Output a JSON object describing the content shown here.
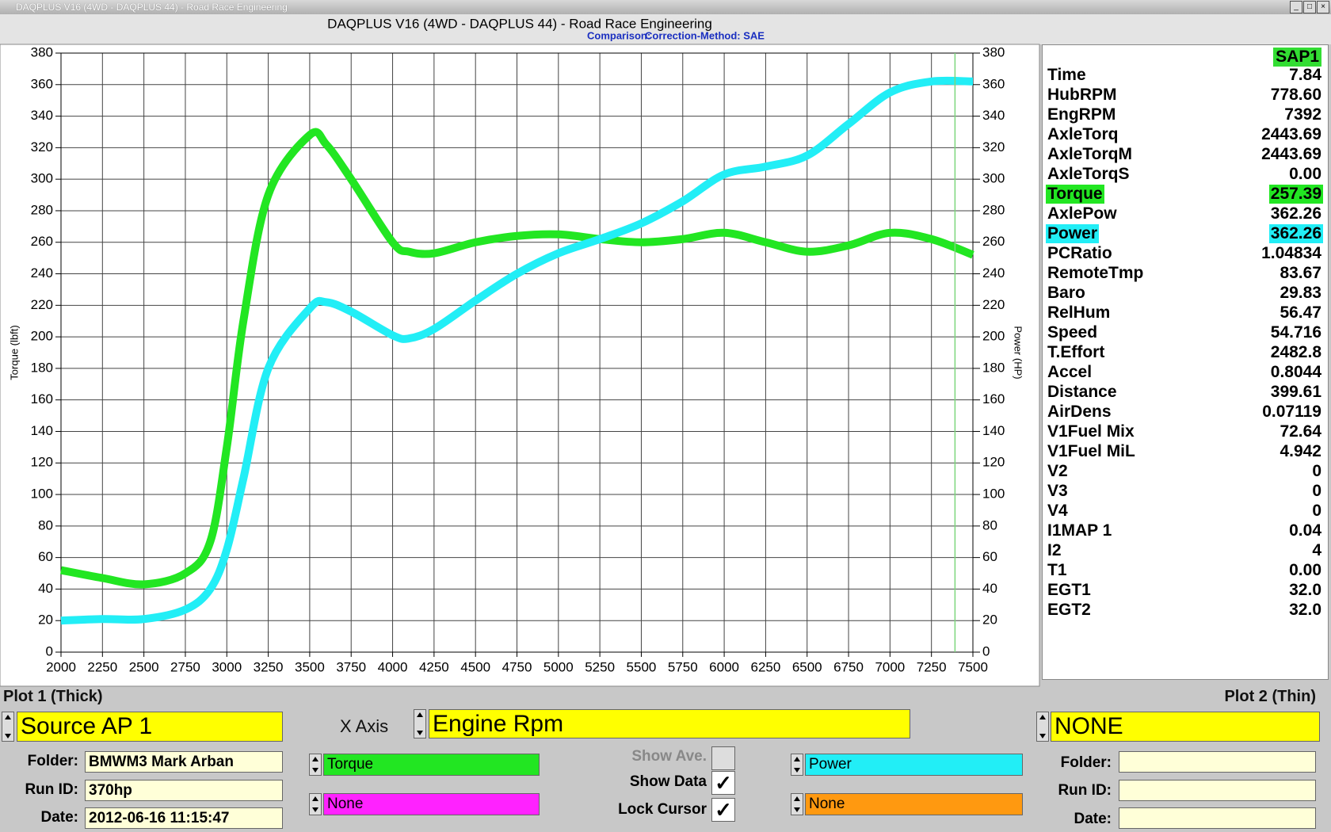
{
  "window": {
    "title": "DAQPLUS V16 (4WD - DAQPLUS 44) - Road Race Engineering"
  },
  "chart_data": {
    "type": "line",
    "title": "DAQPLUS V16 (4WD - DAQPLUS 44) - Road Race Engineering",
    "subtitle": "Comparison:",
    "annotation": "Correction-Method: SAE",
    "y_label": "Torque (lbft)",
    "y2_label": "Power (HP)",
    "x": [
      2000,
      2250,
      2500,
      2750,
      2900,
      3000,
      3100,
      3250,
      3500,
      3600,
      3750,
      4000,
      4100,
      4250,
      4500,
      4750,
      5000,
      5250,
      5500,
      5750,
      6000,
      6250,
      6500,
      6750,
      7000,
      7250,
      7500
    ],
    "series": [
      {
        "name": "Torque",
        "color": "#22e622",
        "values": [
          52,
          47,
          43,
          50,
          70,
          130,
          210,
          290,
          328,
          322,
          300,
          260,
          254,
          253,
          260,
          264,
          265,
          262,
          260,
          262,
          266,
          260,
          254,
          258,
          266,
          262,
          252
        ]
      },
      {
        "name": "Power",
        "color": "#22eef6",
        "axis": "y2",
        "values": [
          20,
          21,
          21,
          27,
          40,
          65,
          110,
          180,
          218,
          222,
          216,
          201,
          199,
          205,
          223,
          240,
          253,
          262,
          272,
          286,
          303,
          308,
          315,
          335,
          355,
          362,
          362
        ]
      }
    ],
    "xlim": [
      2000,
      7500
    ],
    "xticks": [
      2000,
      2250,
      2500,
      2750,
      3000,
      3250,
      3500,
      3750,
      4000,
      4250,
      4500,
      4750,
      5000,
      5250,
      5500,
      5750,
      6000,
      6250,
      6500,
      6750,
      7000,
      7250,
      7500
    ],
    "ylim": [
      0,
      380
    ],
    "yticks": [
      0,
      20,
      40,
      60,
      80,
      100,
      120,
      140,
      160,
      180,
      200,
      220,
      240,
      260,
      280,
      300,
      320,
      340,
      360,
      380
    ],
    "y2lim": [
      0,
      380
    ],
    "y2ticks": [
      0,
      20,
      40,
      60,
      80,
      100,
      120,
      140,
      160,
      180,
      200,
      220,
      240,
      260,
      280,
      300,
      320,
      340,
      360,
      380
    ],
    "grid": true,
    "cursor": 7392
  },
  "readout": {
    "header": "SAP1",
    "rows": [
      {
        "label": "Time",
        "value": "7.84"
      },
      {
        "label": "HubRPM",
        "value": "778.60"
      },
      {
        "label": "EngRPM",
        "value": "7392"
      },
      {
        "label": "AxleTorq",
        "value": "2443.69"
      },
      {
        "label": "AxleTorqM",
        "value": "2443.69"
      },
      {
        "label": "AxleTorqS",
        "value": "0.00"
      },
      {
        "label": "Torque",
        "value": "257.39",
        "color": "#22e622"
      },
      {
        "label": "AxlePow",
        "value": "362.26"
      },
      {
        "label": "Power",
        "value": "362.26",
        "color": "#22eef6"
      },
      {
        "label": "PCRatio",
        "value": "1.04834"
      },
      {
        "label": "RemoteTmp",
        "value": "83.67"
      },
      {
        "label": "Baro",
        "value": "29.83"
      },
      {
        "label": "RelHum",
        "value": "56.47"
      },
      {
        "label": "Speed",
        "value": "54.716"
      },
      {
        "label": "T.Effort",
        "value": "2482.8"
      },
      {
        "label": "Accel",
        "value": "0.8044"
      },
      {
        "label": "Distance",
        "value": "399.61"
      },
      {
        "label": "AirDens",
        "value": "0.07119"
      },
      {
        "label": "V1Fuel Mix",
        "value": "72.64"
      },
      {
        "label": "V1Fuel MiL",
        "value": "4.942"
      },
      {
        "label": "V2",
        "value": "0"
      },
      {
        "label": "V3",
        "value": "0"
      },
      {
        "label": "V4",
        "value": "0"
      },
      {
        "label": "I1MAP 1",
        "value": "0.04"
      },
      {
        "label": "I2",
        "value": "4"
      },
      {
        "label": "T1",
        "value": "0.00"
      },
      {
        "label": "EGT1",
        "value": "32.0"
      },
      {
        "label": "EGT2",
        "value": "32.0"
      }
    ]
  },
  "controls": {
    "plot1": "Plot 1 (Thick)",
    "plot2": "Plot 2 (Thin)",
    "source": "Source AP 1",
    "x_axis_label": "X Axis",
    "x_axis": "Engine Rpm",
    "source2": "NONE",
    "folder_label": "Folder:",
    "run_label": "Run ID:",
    "date_label": "Date:",
    "folder": "BMWM3 Mark Arban",
    "run_id": "370hp",
    "date": "2012-06-16 11:15:47",
    "plot1_a": "Torque",
    "plot1_b": "None",
    "plot2_a": "Power",
    "plot2_b": "None",
    "show_ave": "Show Ave.",
    "show_data": "Show Data",
    "lock_cursor": "Lock Cursor"
  }
}
